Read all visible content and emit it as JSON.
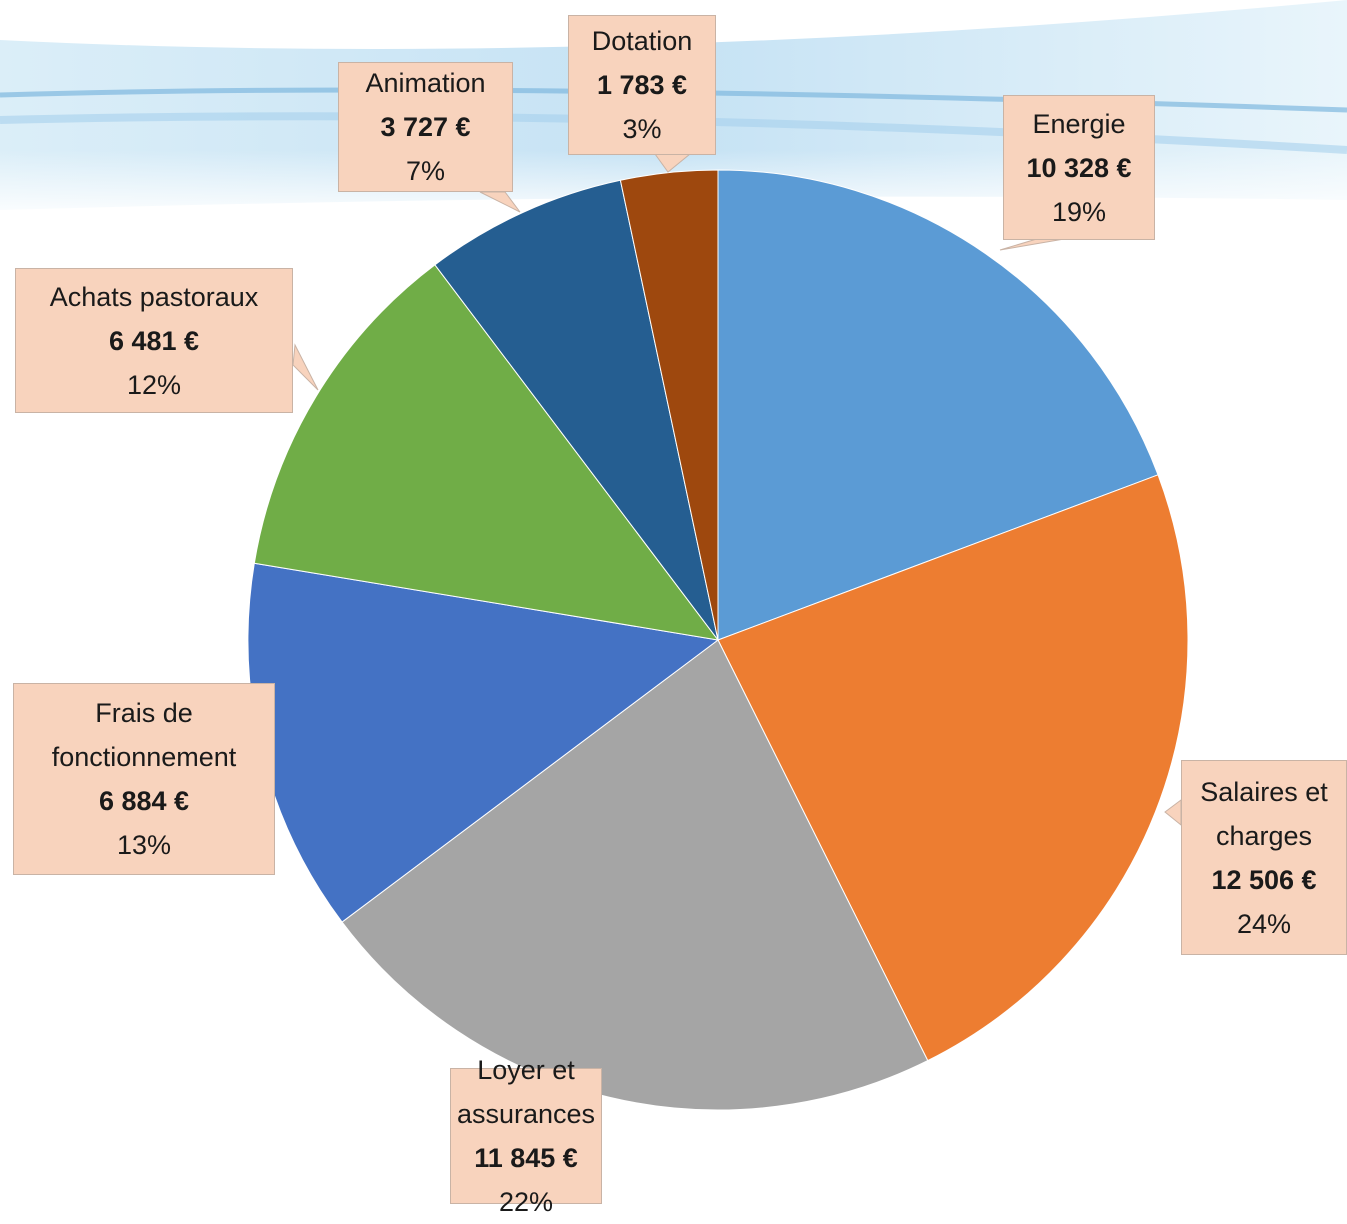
{
  "chart_data": {
    "type": "pie",
    "categories": [
      "Energie",
      "Salaires et charges",
      "Loyer et assurances",
      "Frais de fonctionnement",
      "Achats pastoraux",
      "Animation",
      "Dotation"
    ],
    "values": [
      10328,
      12506,
      11845,
      6884,
      6481,
      3727,
      1783
    ],
    "value_labels": [
      "10 328 €",
      "12 506 €",
      "11 845 €",
      "6 884 €",
      "6 481 €",
      "3 727 €",
      "1 783 €"
    ],
    "percent_labels": [
      "19%",
      "24%",
      "22%",
      "13%",
      "12%",
      "7%",
      "3%"
    ],
    "colors": [
      "#5b9bd5",
      "#ed7d31",
      "#a5a5a5",
      "#4472c4",
      "#70ad47",
      "#255e91",
      "#9e480e"
    ]
  }
}
